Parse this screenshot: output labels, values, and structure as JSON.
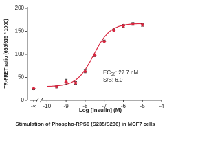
{
  "chart_data": {
    "type": "dose-response",
    "y_label": "TR-FRET ratio (665/615 * 1000)",
    "x_label": "Log [Insulin] (M)",
    "caption": "Stimulation of Phospho-RPS6 (S235/S236) in MCF7 cells",
    "color": "#d9263f",
    "ylim": [
      0,
      200
    ],
    "yticks": [
      0,
      50,
      100,
      150,
      200
    ],
    "xlim": [
      -10.3,
      -4
    ],
    "xticks": [
      -10,
      -9,
      -8,
      -7,
      -6,
      -5,
      -4
    ],
    "baseline": {
      "label": "-∞",
      "value": 26,
      "error": 3
    },
    "points": {
      "x": [
        -9.5,
        -9,
        -8.5,
        -8,
        -7.5,
        -7,
        -6.5,
        -6,
        -5.5,
        -5
      ],
      "values": [
        30,
        40,
        38,
        63,
        98,
        128,
        152,
        162,
        166,
        164
      ],
      "errors": [
        3,
        6,
        3,
        3,
        3,
        3,
        3,
        3,
        3,
        3
      ]
    },
    "fit": {
      "x": [
        -10,
        -9.75,
        -9.5,
        -9.25,
        -9,
        -8.75,
        -8.5,
        -8.25,
        -8,
        -7.75,
        -7.5,
        -7.25,
        -7,
        -6.75,
        -6.5,
        -6.25,
        -6,
        -5.75,
        -5.5,
        -5.25,
        -5
      ],
      "values": [
        30.5,
        30.9,
        31.6,
        32.7,
        34.8,
        38.3,
        44.1,
        53.2,
        66.5,
        83.7,
        103.2,
        121.9,
        137.4,
        148.6,
        156.0,
        160.6,
        163.3,
        164.9,
        165.8,
        166.3,
        166.6
      ]
    },
    "annotation": {
      "ec": "EC",
      "ec_sub": "50",
      "ec_text": ": 27.7 nM",
      "sb": "S/B: 6.0"
    }
  }
}
